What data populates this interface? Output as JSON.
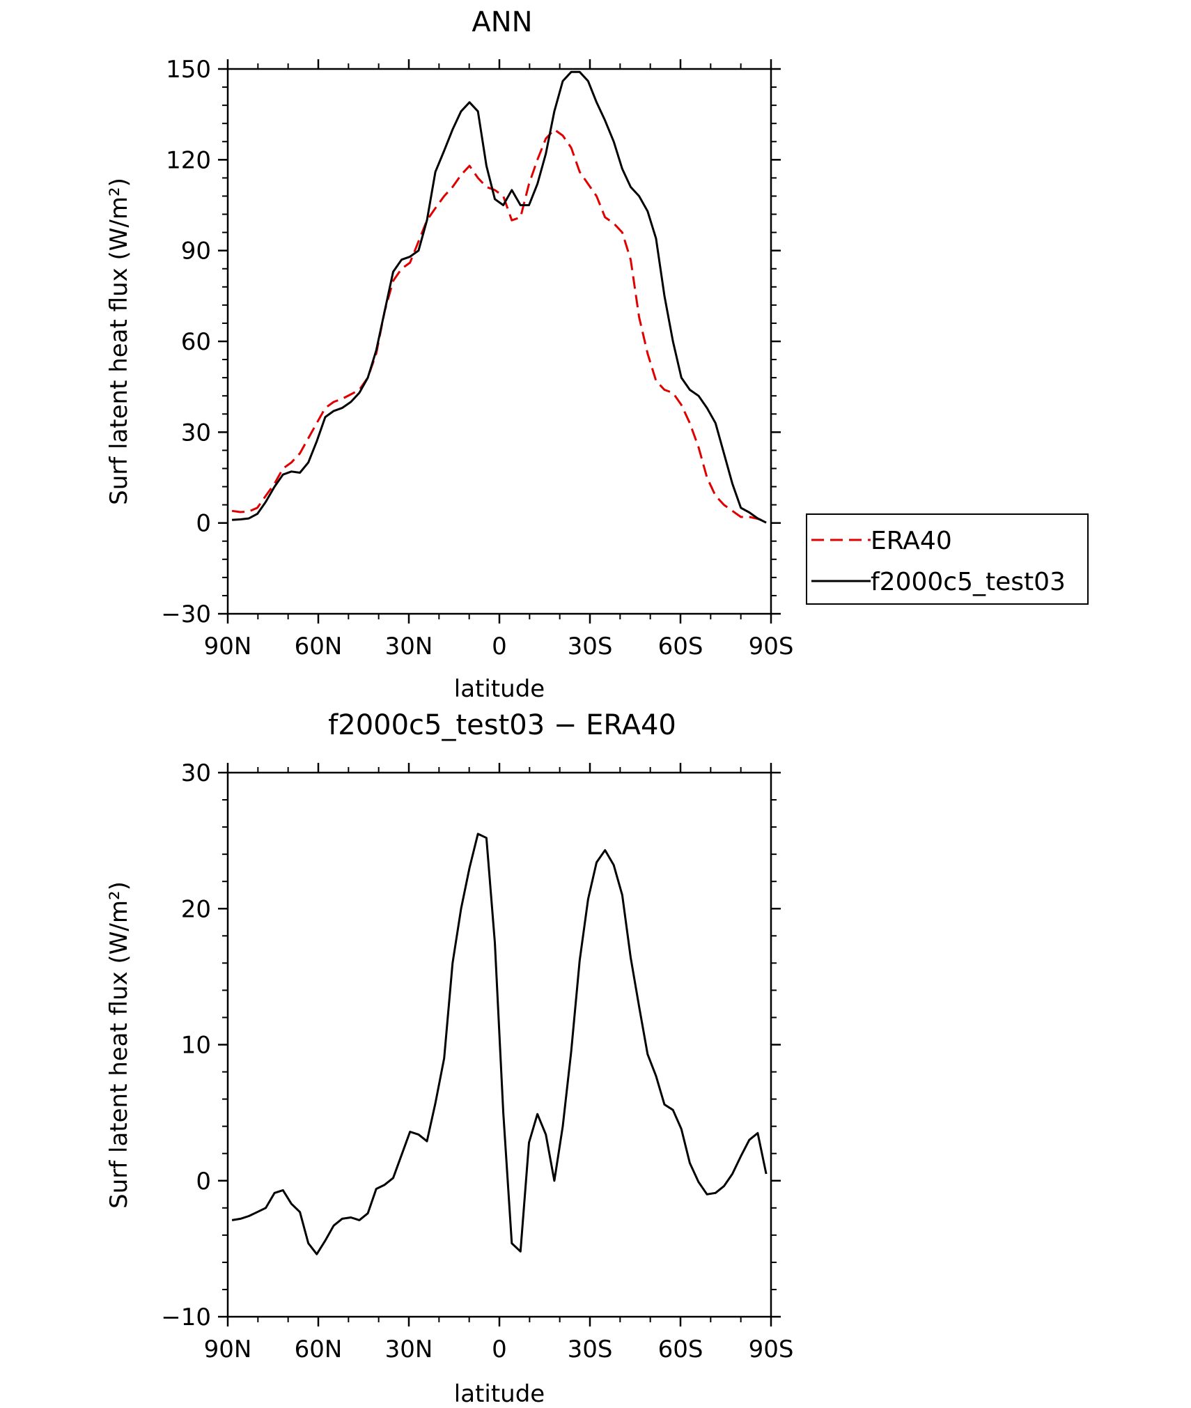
{
  "chart_data": [
    {
      "type": "line",
      "title": "ANN",
      "xlabel": "latitude",
      "ylabel": "Surf latent heat flux (W/m²)",
      "xlim": [
        90,
        -90
      ],
      "ylim": [
        -30,
        150
      ],
      "yticks": [
        -30,
        0,
        30,
        60,
        90,
        120,
        150
      ],
      "ytick_labels": [
        "−30",
        "0",
        "30",
        "60",
        "90",
        "120",
        "150"
      ],
      "xticks": [
        90,
        60,
        30,
        0,
        -30,
        -60,
        -90
      ],
      "xtick_labels": [
        "90N",
        "60N",
        "30N",
        "0",
        "30S",
        "60S",
        "90S"
      ],
      "grid": false,
      "legend": "right",
      "series": [
        {
          "name": "ERA40",
          "color": "#e00000",
          "dash": "dashed",
          "x": [
            88.6,
            85.8,
            83.0,
            80.2,
            77.4,
            74.5,
            71.7,
            68.9,
            66.1,
            63.3,
            60.5,
            57.7,
            54.9,
            52.1,
            49.2,
            46.4,
            43.6,
            40.8,
            38.0,
            35.2,
            32.4,
            29.6,
            26.8,
            24.0,
            21.2,
            18.3,
            15.5,
            12.7,
            9.9,
            7.1,
            4.3,
            1.5,
            -1.3,
            -4.1,
            -7.0,
            -9.8,
            -12.6,
            -15.4,
            -18.2,
            -21.0,
            -23.8,
            -26.6,
            -29.4,
            -32.2,
            -35.0,
            -37.9,
            -40.7,
            -43.5,
            -46.3,
            -49.1,
            -51.9,
            -54.7,
            -57.5,
            -60.3,
            -63.1,
            -66.0,
            -68.8,
            -71.6,
            -74.4,
            -77.2,
            -80.0,
            -82.8,
            -85.6,
            -88.4
          ],
          "values": [
            4,
            3.6,
            3.8,
            5,
            9,
            13,
            18,
            20,
            23,
            28,
            33,
            38,
            40,
            41,
            42.5,
            44,
            48,
            56,
            70,
            80,
            84,
            86,
            93,
            100,
            104,
            108,
            111,
            115,
            118,
            114,
            111,
            110,
            108,
            100,
            101,
            112,
            120,
            127,
            130,
            128,
            124,
            116,
            112,
            108,
            101,
            99,
            96,
            87,
            68,
            56,
            47,
            44,
            43,
            39,
            33,
            25,
            15,
            9,
            6,
            4,
            2,
            2,
            1.4,
            0.4
          ]
        },
        {
          "name": "f2000c5_test03",
          "color": "#000000",
          "dash": "solid",
          "x": [
            88.6,
            85.8,
            83.0,
            80.2,
            77.4,
            74.5,
            71.7,
            68.9,
            66.1,
            63.3,
            60.5,
            57.7,
            54.9,
            52.1,
            49.2,
            46.4,
            43.6,
            40.8,
            38.0,
            35.2,
            32.4,
            29.6,
            26.8,
            24.0,
            21.2,
            18.3,
            15.5,
            12.7,
            9.9,
            7.1,
            4.3,
            1.5,
            -1.3,
            -4.1,
            -7.0,
            -9.8,
            -12.6,
            -15.4,
            -18.2,
            -21.0,
            -23.8,
            -26.6,
            -29.4,
            -32.2,
            -35.0,
            -37.9,
            -40.7,
            -43.5,
            -46.3,
            -49.1,
            -51.9,
            -54.7,
            -57.5,
            -60.3,
            -63.1,
            -66.0,
            -68.8,
            -71.6,
            -74.4,
            -77.2,
            -80.0,
            -82.8,
            -85.6,
            -88.4
          ],
          "values": [
            1,
            1.2,
            1.5,
            3,
            7,
            12,
            16,
            17,
            16.6,
            20,
            27,
            35,
            37,
            38,
            40,
            43,
            48,
            57,
            70,
            83,
            87,
            88,
            90,
            100,
            116,
            123,
            130,
            136,
            139,
            136,
            118,
            107,
            105,
            110,
            105,
            105,
            112,
            122,
            136,
            146,
            149,
            149,
            146,
            139,
            133,
            126,
            117,
            111,
            108,
            103,
            94,
            75,
            60,
            48,
            44,
            42,
            38,
            33,
            23,
            13,
            5,
            3.5,
            1.5,
            0.1
          ]
        }
      ]
    },
    {
      "type": "line",
      "title": "f2000c5_test03 − ERA40",
      "xlabel": "latitude",
      "ylabel": "Surf latent heat flux (W/m²)",
      "xlim": [
        90,
        -90
      ],
      "ylim": [
        -10,
        30
      ],
      "yticks": [
        -10,
        0,
        10,
        20,
        30
      ],
      "ytick_labels": [
        "−10",
        "0",
        "10",
        "20",
        "30"
      ],
      "xticks": [
        90,
        60,
        30,
        0,
        -30,
        -60,
        -90
      ],
      "xtick_labels": [
        "90N",
        "60N",
        "30N",
        "0",
        "30S",
        "60S",
        "90S"
      ],
      "grid": false,
      "series": [
        {
          "color": "#000000",
          "dash": "solid",
          "x": [
            88.6,
            85.8,
            83.0,
            80.2,
            77.4,
            74.5,
            71.7,
            68.9,
            66.1,
            63.3,
            60.5,
            57.7,
            54.9,
            52.1,
            49.2,
            46.4,
            43.6,
            40.8,
            38.0,
            35.2,
            32.4,
            29.6,
            26.8,
            24.0,
            21.2,
            18.3,
            15.5,
            12.7,
            9.9,
            7.1,
            4.3,
            1.5,
            -1.3,
            -4.1,
            -7.0,
            -9.8,
            -12.6,
            -15.4,
            -18.2,
            -21.0,
            -23.8,
            -26.6,
            -29.4,
            -32.2,
            -35.0,
            -37.9,
            -40.7,
            -43.5,
            -46.3,
            -49.1,
            -51.9,
            -54.7,
            -57.5,
            -60.3,
            -63.1,
            -66.0,
            -68.8,
            -71.6,
            -74.4,
            -77.2,
            -80.0,
            -82.8,
            -85.6,
            -88.4
          ],
          "values": [
            -2.9,
            -2.8,
            -2.6,
            -2.3,
            -2.0,
            -0.9,
            -0.7,
            -1.7,
            -2.3,
            -4.6,
            -5.4,
            -4.4,
            -3.3,
            -2.8,
            -2.7,
            -2.9,
            -2.4,
            -0.6,
            -0.3,
            0.2,
            1.9,
            3.6,
            3.4,
            2.9,
            5.7,
            9.0,
            16.0,
            20.0,
            23.0,
            25.5,
            25.2,
            17.5,
            5.0,
            -4.6,
            -5.2,
            2.8,
            4.9,
            3.4,
            0.0,
            4.0,
            9.5,
            16.2,
            20.7,
            23.4,
            24.3,
            23.2,
            21.0,
            16.4,
            12.8,
            9.3,
            7.7,
            5.6,
            5.2,
            3.8,
            1.3,
            -0.1,
            -1.0,
            -0.9,
            -0.4,
            0.5,
            1.8,
            3.0,
            3.5,
            0.5
          ]
        }
      ]
    }
  ]
}
